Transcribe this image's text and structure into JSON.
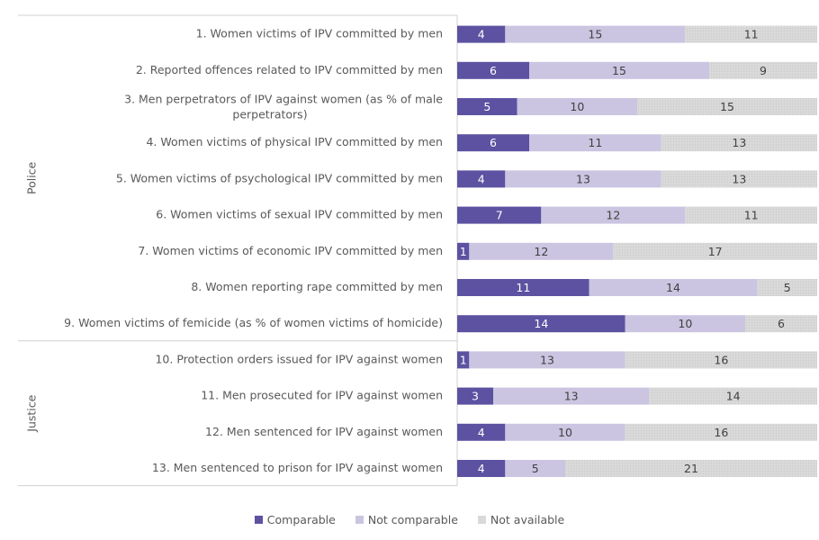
{
  "chart_data": {
    "type": "bar",
    "orientation": "horizontal",
    "stacked": true,
    "title": "",
    "xlabel": "",
    "ylabel": "",
    "xlim": [
      0,
      30
    ],
    "grid": false,
    "legend_position": "bottom",
    "groups": [
      {
        "name": "Police",
        "rows": [
          0,
          1,
          2,
          3,
          4,
          5,
          6,
          7,
          8
        ]
      },
      {
        "name": "Justice",
        "rows": [
          9,
          10,
          11,
          12
        ]
      }
    ],
    "categories": [
      "1. Women victims of IPV committed by men",
      "2. Reported offences related to IPV committed by men",
      "3. Men perpetrators of IPV against women (as % of male perpetrators)",
      "4. Women victims of physical IPV committed by men",
      "5. Women victims of psychological IPV committed by men",
      "6. Women victims of sexual IPV committed by men",
      "7. Women victims of economic IPV committed by men",
      "8. Women reporting rape committed by men",
      "9. Women victims of femicide (as % of women victims of homicide)",
      "10. Protection orders issued for IPV against women",
      "11. Men prosecuted for IPV against women",
      "12. Men sentenced for IPV against women",
      "13. Men sentenced to prison for IPV against women"
    ],
    "category_label_lines": {
      "2": [
        "3. Men perpetrators of IPV against women (as % of male",
        "perpetrators)"
      ]
    },
    "series": [
      {
        "name": "Comparable",
        "color": "#5C52A1",
        "label_color": "#ffffff",
        "values": [
          4,
          6,
          5,
          6,
          4,
          7,
          1,
          11,
          14,
          1,
          3,
          4,
          4
        ]
      },
      {
        "name": "Not comparable",
        "color": "#CBC5E1",
        "label_color": "#404040",
        "values": [
          15,
          15,
          10,
          11,
          13,
          12,
          12,
          14,
          10,
          13,
          13,
          10,
          5
        ]
      },
      {
        "name": "Not available",
        "color": "#D9D9D9",
        "label_color": "#404040",
        "values": [
          11,
          9,
          15,
          13,
          13,
          11,
          17,
          5,
          6,
          16,
          14,
          16,
          21
        ]
      }
    ]
  },
  "legend": {
    "items": [
      {
        "label": "Comparable",
        "color": "#5C52A1"
      },
      {
        "label": "Not comparable",
        "color": "#CBC5E1"
      },
      {
        "label": "Not available",
        "color": "#D9D9D9"
      }
    ]
  }
}
